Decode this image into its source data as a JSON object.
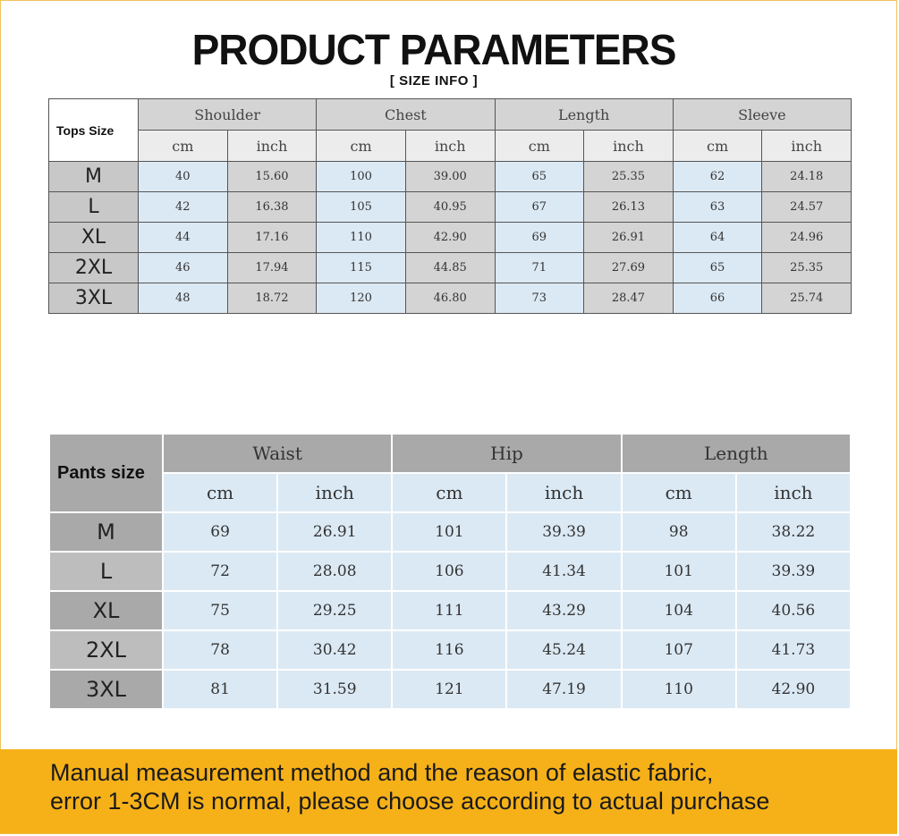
{
  "header": {
    "title": "PRODUCT PARAMETERS",
    "subtitle": "[ SIZE INFO ]"
  },
  "tops": {
    "corner_label": "Tops Size",
    "groups": [
      "Shoulder",
      "Chest",
      "Length",
      "Sleeve"
    ],
    "unit_cm": "cm",
    "unit_inch": "inch",
    "rows": [
      {
        "size": "M",
        "values": [
          "40",
          "15.60",
          "100",
          "39.00",
          "65",
          "25.35",
          "62",
          "24.18"
        ]
      },
      {
        "size": "L",
        "values": [
          "42",
          "16.38",
          "105",
          "40.95",
          "67",
          "26.13",
          "63",
          "24.57"
        ]
      },
      {
        "size": "XL",
        "values": [
          "44",
          "17.16",
          "110",
          "42.90",
          "69",
          "26.91",
          "64",
          "24.96"
        ]
      },
      {
        "size": "2XL",
        "values": [
          "46",
          "17.94",
          "115",
          "44.85",
          "71",
          "27.69",
          "65",
          "25.35"
        ]
      },
      {
        "size": "3XL",
        "values": [
          "48",
          "18.72",
          "120",
          "46.80",
          "73",
          "28.47",
          "66",
          "25.74"
        ]
      }
    ]
  },
  "pants": {
    "corner_label": "Pants size",
    "groups": [
      "Waist",
      "Hip",
      "Length"
    ],
    "unit_cm": "cm",
    "unit_inch": "inch",
    "rows": [
      {
        "size": "M",
        "values": [
          "69",
          "26.91",
          "101",
          "39.39",
          "98",
          "38.22"
        ]
      },
      {
        "size": "L",
        "values": [
          "72",
          "28.08",
          "106",
          "41.34",
          "101",
          "39.39"
        ]
      },
      {
        "size": "XL",
        "values": [
          "75",
          "29.25",
          "111",
          "43.29",
          "104",
          "40.56"
        ]
      },
      {
        "size": "2XL",
        "values": [
          "78",
          "30.42",
          "116",
          "45.24",
          "107",
          "41.73"
        ]
      },
      {
        "size": "3XL",
        "values": [
          "81",
          "31.59",
          "121",
          "47.19",
          "110",
          "42.90"
        ]
      }
    ]
  },
  "footer": {
    "line1": "Manual measurement method and the reason of elastic fabric,",
    "line2": "error 1-3CM is normal, please choose according to actual purchase"
  },
  "colors": {
    "banner": "#f6b119",
    "light_blue": "#dbe9f4",
    "gray": "#a9a9a9"
  }
}
